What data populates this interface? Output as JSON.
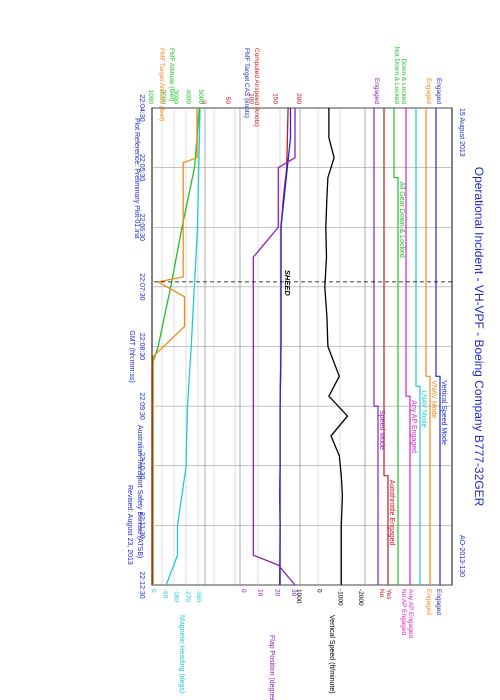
{
  "header": {
    "title": "Operational Incident - VH-VPF -  Boeing Company B777-32GER",
    "date": "15 August 2013",
    "report_id": "AO-2013-130",
    "footer_left": "Plot Reference: Preliminary Plot-01.ina",
    "footer_right_1": "Australian Transport Safety Bureau (ATSB)",
    "footer_right_2": "Revised: August 23, 2013"
  },
  "time_axis": {
    "label": "GMT (hh:mm:ss)",
    "ticks": [
      "22:04:30",
      "22:05:30",
      "22:06:30",
      "22:07:30",
      "22:08:30",
      "22:09:30",
      "22:10:30",
      "22:11:30",
      "22:12:30"
    ]
  },
  "discretes": {
    "vs_mode": {
      "label": "Vertical Speed Mode",
      "left_label": "Engaged",
      "top_label": "Engaged",
      "color": "#1f2bc8"
    },
    "vnav": {
      "label": "VNAV Mode",
      "left_label": "Engaged",
      "top_label": "Engaged",
      "color": "#f28a1a"
    },
    "lnav": {
      "label": "LNAV Mode",
      "color": "#22c8d8"
    },
    "any_ap": {
      "label": "Any AP Engaged",
      "top_label_1": "Any AP Engaged",
      "top_label_2": "No AP Engaged",
      "color": "#e01ec8"
    },
    "gear": {
      "label": "All Gear Down & Locked",
      "left_label_1": "Not Down & Locked",
      "left_label_2": "Down & Locked",
      "color": "#22c02a"
    },
    "autothrottle": {
      "label": "Autothrottle Engaged",
      "top_yes": "Yes",
      "top_no": "No",
      "color": "#c8161e"
    },
    "speed_mode": {
      "label": "Speed Mode",
      "left_label": "Engaged",
      "color": "#8a22b8"
    }
  },
  "scales": {
    "vertical_speed": {
      "label": "Vertical Speed (ft/minute)",
      "ticks": [
        "1000",
        "0",
        "-1000",
        "-2000"
      ]
    },
    "flap": {
      "label": "Flap Position (degrees)",
      "ticks": [
        "30",
        "20",
        "10",
        "0"
      ]
    },
    "heading": {
      "label": "Magnetic Heading (degs)",
      "ticks": [
        "-360",
        "-270",
        "-180",
        "-90",
        "0"
      ]
    },
    "airspeed": {
      "label_1": "Computed Airspeed (knots)",
      "label_2": "FMF Target CAS (knots)",
      "ticks": [
        "200",
        "150",
        "100",
        "50",
        "0"
      ]
    },
    "altitude": {
      "label_1": "FMF Altitude (feet)",
      "label_2": "FMF Target Altitude (feet)",
      "ticks": [
        "5000",
        "4000",
        "3000",
        "2000",
        "1000"
      ]
    }
  },
  "annotation": "SHEED",
  "chart_data": {
    "type": "line",
    "x_unit": "GMT",
    "x_range": [
      "22:04:30",
      "22:12:30"
    ],
    "series": [
      {
        "name": "Vertical Speed",
        "unit": "ft/minute",
        "color": "#000000",
        "x": [
          "22:04:30",
          "22:05:00",
          "22:05:20",
          "22:05:40",
          "22:06:00",
          "22:06:30",
          "22:07:00",
          "22:07:30",
          "22:08:00",
          "22:08:30",
          "22:09:00",
          "22:09:20",
          "22:09:40",
          "22:10:00",
          "22:10:20",
          "22:10:40",
          "22:11:00",
          "22:11:30",
          "22:12:00",
          "22:12:30"
        ],
        "y": [
          -400,
          -400,
          -650,
          -350,
          -300,
          -250,
          -280,
          -200,
          -300,
          -350,
          -900,
          -400,
          -1300,
          -500,
          -900,
          -1000,
          -1050,
          -1000,
          -1000,
          -1000
        ]
      },
      {
        "name": "Computed Airspeed",
        "unit": "knots",
        "color": "#c8161e",
        "x": [
          "22:04:30",
          "22:05:30",
          "22:06:00",
          "22:06:30",
          "22:07:30",
          "22:08:30",
          "22:09:30",
          "22:10:30",
          "22:11:00",
          "22:11:30",
          "22:12:30"
        ],
        "y": [
          175,
          172,
          165,
          160,
          160,
          160,
          158,
          158,
          157,
          158,
          157
        ]
      },
      {
        "name": "FMF Target CAS",
        "unit": "knots",
        "color": "#1f2bc8",
        "x": [
          "22:04:30",
          "22:05:00",
          "22:06:30",
          "22:07:30",
          "22:08:30",
          "22:09:30",
          "22:10:00",
          "22:10:30",
          "22:12:30"
        ],
        "y": [
          180,
          180,
          160,
          160,
          160,
          158,
          158,
          158,
          158
        ]
      },
      {
        "name": "Flap Position",
        "unit": "degrees",
        "color": "#8a22b8",
        "x": [
          "22:04:30",
          "22:05:20",
          "22:05:30",
          "22:06:00",
          "22:06:30",
          "22:07:00",
          "22:10:30",
          "22:11:00",
          "22:11:30",
          "22:12:00",
          "22:12:10",
          "22:12:30"
        ],
        "y": [
          30,
          30,
          20,
          20,
          20,
          5,
          5,
          5,
          5,
          5,
          20,
          30
        ]
      },
      {
        "name": "Magnetic Heading",
        "unit": "degs",
        "color": "#22c8d8",
        "x": [
          "22:04:30",
          "22:06:30",
          "22:08:30",
          "22:09:30",
          "22:10:20",
          "22:10:30",
          "22:11:30",
          "22:12:00",
          "22:12:30"
        ],
        "y": [
          -360,
          -340,
          -290,
          -260,
          -250,
          -250,
          -180,
          -180,
          -90
        ]
      },
      {
        "name": "FMF Altitude",
        "unit": "feet",
        "color": "#22c02a",
        "x": [
          "22:04:30",
          "22:05:30",
          "22:06:30",
          "22:07:30",
          "22:08:30",
          "22:08:45"
        ],
        "y": [
          4800,
          4400,
          3400,
          2500,
          1500,
          1100
        ]
      },
      {
        "name": "FMF Target Altitude",
        "unit": "feet",
        "color": "#f28a1a",
        "x": [
          "22:04:30",
          "22:05:20",
          "22:05:25",
          "22:05:40",
          "22:07:20",
          "22:07:25",
          "22:07:40",
          "22:08:10",
          "22:08:40",
          "22:12:30"
        ],
        "y": [
          4600,
          4600,
          3500,
          3500,
          3500,
          1500,
          3600,
          3600,
          1100,
          1100
        ]
      }
    ],
    "ylim": {
      "vertical_speed": [
        -2000,
        1000
      ],
      "airspeed": [
        0,
        200
      ],
      "flap": [
        0,
        30
      ],
      "heading": [
        -360,
        0
      ],
      "altitude": [
        1000,
        5000
      ]
    },
    "grid": true
  }
}
